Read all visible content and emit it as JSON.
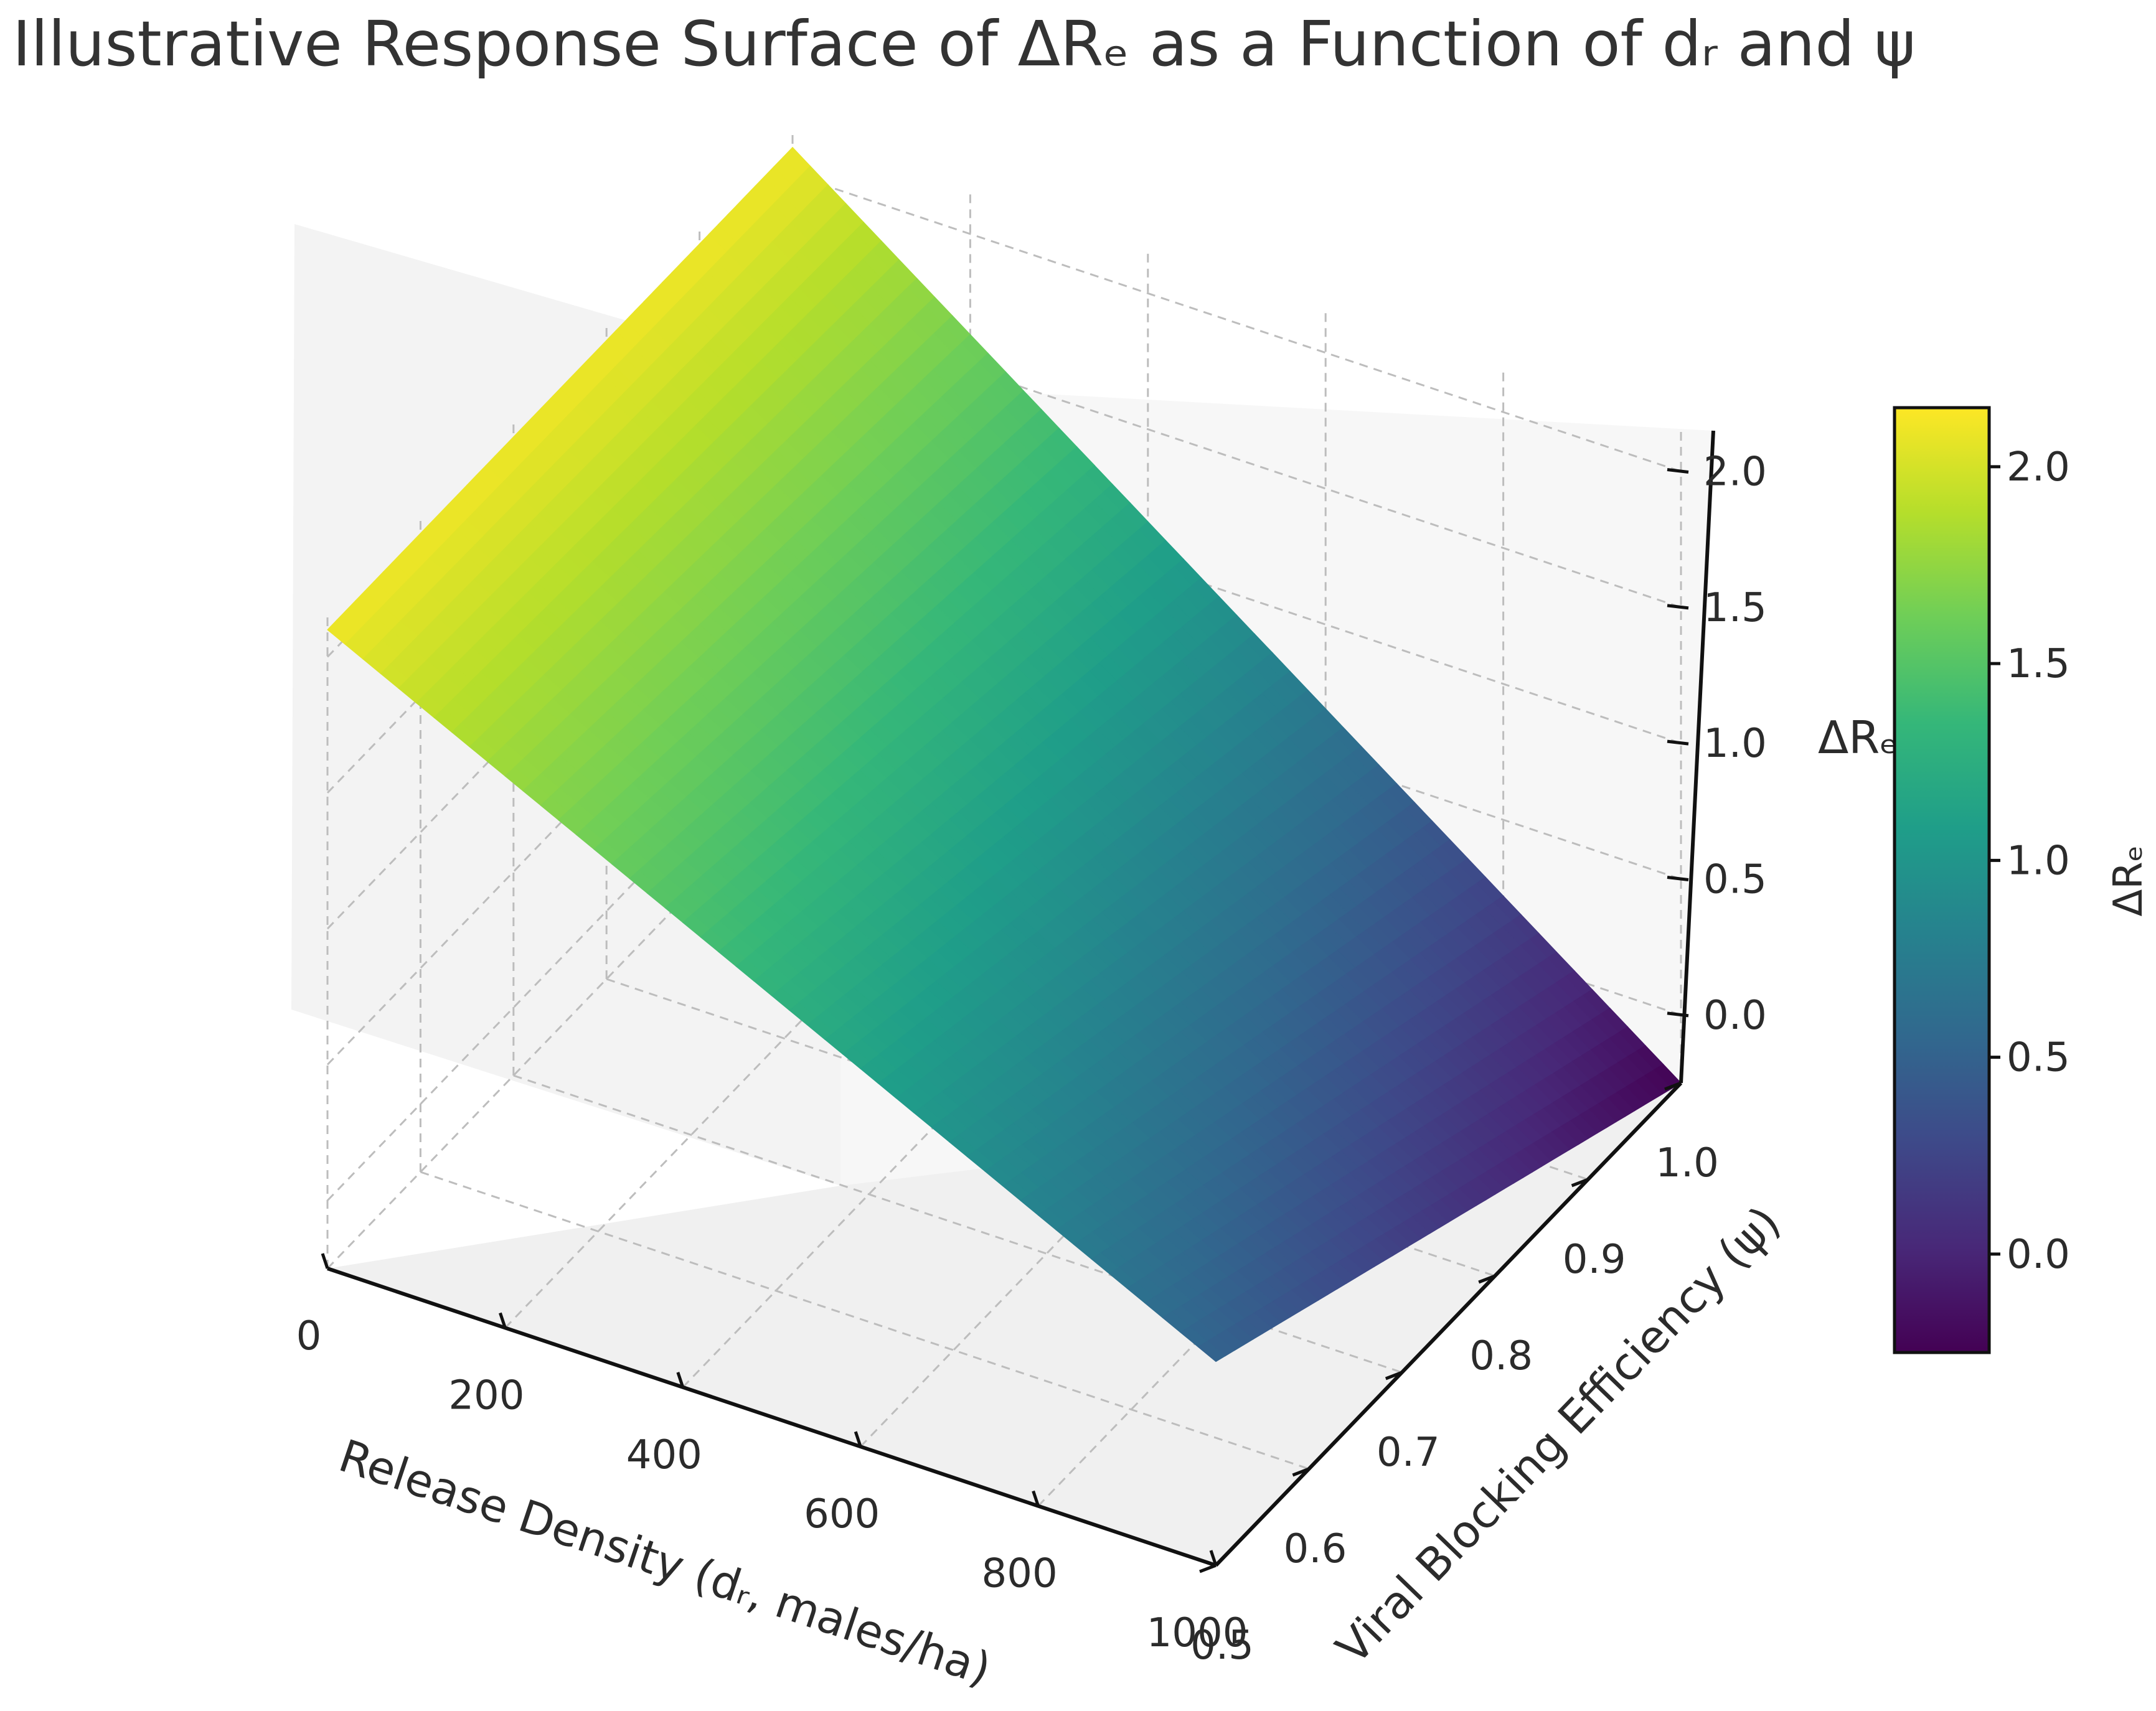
{
  "chart_data": {
    "type": "surface",
    "title": "Illustrative Response Surface of ΔRₑ as a Function of dᵣ and ψ",
    "x_label": "Release Density (dᵣ, males/ha)",
    "y_label": "Viral Blocking Efficiency (ψ)",
    "z_label": "ΔRₑ",
    "colorbar_label": "ΔRₑ",
    "colormap": "viridis",
    "x_range": [
      0,
      1000
    ],
    "y_range": [
      0.5,
      1.0
    ],
    "z_range": [
      -0.25,
      2.15
    ],
    "x_ticks": [
      "0",
      "200",
      "400",
      "600",
      "800",
      "1000"
    ],
    "y_ticks": [
      "0.5",
      "0.6",
      "0.7",
      "0.8",
      "0.9",
      "1.0"
    ],
    "z_ticks": [
      "0.0",
      "0.5",
      "1.0",
      "1.5",
      "2.0"
    ],
    "colorbar_ticks": [
      "0.0",
      "0.5",
      "1.0",
      "1.5",
      "2.0"
    ],
    "surface_corners": [
      {
        "x": 0,
        "y": 0.5,
        "z": 2.1
      },
      {
        "x": 0,
        "y": 1.0,
        "z": 2.1
      },
      {
        "x": 1000,
        "y": 0.5,
        "z": 0.5
      },
      {
        "x": 1000,
        "y": 1.0,
        "z": -0.25
      }
    ],
    "surface_grid_resolution": 50
  }
}
